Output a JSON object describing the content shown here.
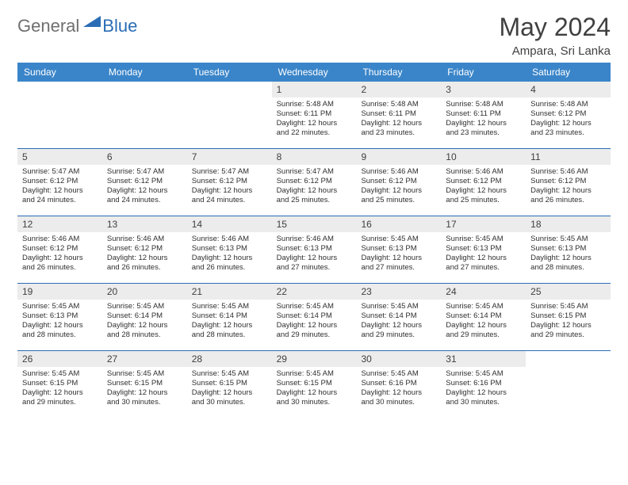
{
  "logo": {
    "part1": "General",
    "part2": "Blue"
  },
  "title": "May 2024",
  "subtitle": "Ampara, Sri Lanka",
  "colors": {
    "header_bg": "#3a85c9",
    "rule": "#2a6db5",
    "daynum_bg": "#ececec",
    "text": "#404040"
  },
  "dayheads": [
    "Sunday",
    "Monday",
    "Tuesday",
    "Wednesday",
    "Thursday",
    "Friday",
    "Saturday"
  ],
  "weeks": [
    [
      {
        "n": "",
        "r": "",
        "s": "",
        "d": ""
      },
      {
        "n": "",
        "r": "",
        "s": "",
        "d": ""
      },
      {
        "n": "",
        "r": "",
        "s": "",
        "d": ""
      },
      {
        "n": "1",
        "r": "Sunrise: 5:48 AM",
        "s": "Sunset: 6:11 PM",
        "d": "Daylight: 12 hours and 22 minutes."
      },
      {
        "n": "2",
        "r": "Sunrise: 5:48 AM",
        "s": "Sunset: 6:11 PM",
        "d": "Daylight: 12 hours and 23 minutes."
      },
      {
        "n": "3",
        "r": "Sunrise: 5:48 AM",
        "s": "Sunset: 6:11 PM",
        "d": "Daylight: 12 hours and 23 minutes."
      },
      {
        "n": "4",
        "r": "Sunrise: 5:48 AM",
        "s": "Sunset: 6:12 PM",
        "d": "Daylight: 12 hours and 23 minutes."
      }
    ],
    [
      {
        "n": "5",
        "r": "Sunrise: 5:47 AM",
        "s": "Sunset: 6:12 PM",
        "d": "Daylight: 12 hours and 24 minutes."
      },
      {
        "n": "6",
        "r": "Sunrise: 5:47 AM",
        "s": "Sunset: 6:12 PM",
        "d": "Daylight: 12 hours and 24 minutes."
      },
      {
        "n": "7",
        "r": "Sunrise: 5:47 AM",
        "s": "Sunset: 6:12 PM",
        "d": "Daylight: 12 hours and 24 minutes."
      },
      {
        "n": "8",
        "r": "Sunrise: 5:47 AM",
        "s": "Sunset: 6:12 PM",
        "d": "Daylight: 12 hours and 25 minutes."
      },
      {
        "n": "9",
        "r": "Sunrise: 5:46 AM",
        "s": "Sunset: 6:12 PM",
        "d": "Daylight: 12 hours and 25 minutes."
      },
      {
        "n": "10",
        "r": "Sunrise: 5:46 AM",
        "s": "Sunset: 6:12 PM",
        "d": "Daylight: 12 hours and 25 minutes."
      },
      {
        "n": "11",
        "r": "Sunrise: 5:46 AM",
        "s": "Sunset: 6:12 PM",
        "d": "Daylight: 12 hours and 26 minutes."
      }
    ],
    [
      {
        "n": "12",
        "r": "Sunrise: 5:46 AM",
        "s": "Sunset: 6:12 PM",
        "d": "Daylight: 12 hours and 26 minutes."
      },
      {
        "n": "13",
        "r": "Sunrise: 5:46 AM",
        "s": "Sunset: 6:12 PM",
        "d": "Daylight: 12 hours and 26 minutes."
      },
      {
        "n": "14",
        "r": "Sunrise: 5:46 AM",
        "s": "Sunset: 6:13 PM",
        "d": "Daylight: 12 hours and 26 minutes."
      },
      {
        "n": "15",
        "r": "Sunrise: 5:46 AM",
        "s": "Sunset: 6:13 PM",
        "d": "Daylight: 12 hours and 27 minutes."
      },
      {
        "n": "16",
        "r": "Sunrise: 5:45 AM",
        "s": "Sunset: 6:13 PM",
        "d": "Daylight: 12 hours and 27 minutes."
      },
      {
        "n": "17",
        "r": "Sunrise: 5:45 AM",
        "s": "Sunset: 6:13 PM",
        "d": "Daylight: 12 hours and 27 minutes."
      },
      {
        "n": "18",
        "r": "Sunrise: 5:45 AM",
        "s": "Sunset: 6:13 PM",
        "d": "Daylight: 12 hours and 28 minutes."
      }
    ],
    [
      {
        "n": "19",
        "r": "Sunrise: 5:45 AM",
        "s": "Sunset: 6:13 PM",
        "d": "Daylight: 12 hours and 28 minutes."
      },
      {
        "n": "20",
        "r": "Sunrise: 5:45 AM",
        "s": "Sunset: 6:14 PM",
        "d": "Daylight: 12 hours and 28 minutes."
      },
      {
        "n": "21",
        "r": "Sunrise: 5:45 AM",
        "s": "Sunset: 6:14 PM",
        "d": "Daylight: 12 hours and 28 minutes."
      },
      {
        "n": "22",
        "r": "Sunrise: 5:45 AM",
        "s": "Sunset: 6:14 PM",
        "d": "Daylight: 12 hours and 29 minutes."
      },
      {
        "n": "23",
        "r": "Sunrise: 5:45 AM",
        "s": "Sunset: 6:14 PM",
        "d": "Daylight: 12 hours and 29 minutes."
      },
      {
        "n": "24",
        "r": "Sunrise: 5:45 AM",
        "s": "Sunset: 6:14 PM",
        "d": "Daylight: 12 hours and 29 minutes."
      },
      {
        "n": "25",
        "r": "Sunrise: 5:45 AM",
        "s": "Sunset: 6:15 PM",
        "d": "Daylight: 12 hours and 29 minutes."
      }
    ],
    [
      {
        "n": "26",
        "r": "Sunrise: 5:45 AM",
        "s": "Sunset: 6:15 PM",
        "d": "Daylight: 12 hours and 29 minutes."
      },
      {
        "n": "27",
        "r": "Sunrise: 5:45 AM",
        "s": "Sunset: 6:15 PM",
        "d": "Daylight: 12 hours and 30 minutes."
      },
      {
        "n": "28",
        "r": "Sunrise: 5:45 AM",
        "s": "Sunset: 6:15 PM",
        "d": "Daylight: 12 hours and 30 minutes."
      },
      {
        "n": "29",
        "r": "Sunrise: 5:45 AM",
        "s": "Sunset: 6:15 PM",
        "d": "Daylight: 12 hours and 30 minutes."
      },
      {
        "n": "30",
        "r": "Sunrise: 5:45 AM",
        "s": "Sunset: 6:16 PM",
        "d": "Daylight: 12 hours and 30 minutes."
      },
      {
        "n": "31",
        "r": "Sunrise: 5:45 AM",
        "s": "Sunset: 6:16 PM",
        "d": "Daylight: 12 hours and 30 minutes."
      },
      {
        "n": "",
        "r": "",
        "s": "",
        "d": ""
      }
    ]
  ]
}
